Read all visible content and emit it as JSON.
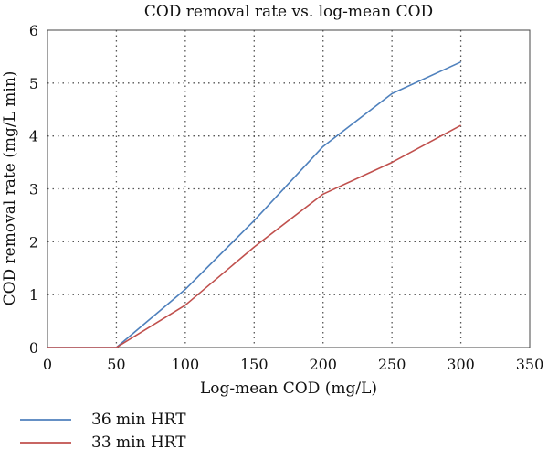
{
  "chart_data": {
    "type": "line",
    "title": "COD removal rate vs. log-mean COD",
    "xlabel": "Log-mean COD (mg/L)",
    "ylabel": "COD removal rate (mg/L min)",
    "xlim": [
      0,
      350
    ],
    "ylim": [
      0,
      6
    ],
    "xticks": [
      0,
      50,
      100,
      150,
      200,
      250,
      300,
      350
    ],
    "yticks": [
      0,
      1,
      2,
      3,
      4,
      5,
      6
    ],
    "grid": {
      "vertical": true,
      "horizontal": true,
      "style": "dotted"
    },
    "legend_position": "bottom-left",
    "series": [
      {
        "name": "36 min HRT",
        "color": "#4f81bd",
        "x": [
          0,
          50,
          100,
          150,
          200,
          250,
          300
        ],
        "y": [
          0,
          0,
          1.1,
          2.4,
          3.8,
          4.8,
          5.4
        ]
      },
      {
        "name": "33 min HRT",
        "color": "#c0504d",
        "x": [
          0,
          50,
          100,
          150,
          200,
          250,
          300
        ],
        "y": [
          0,
          0,
          0.8,
          1.9,
          2.9,
          3.5,
          4.2
        ]
      }
    ]
  }
}
